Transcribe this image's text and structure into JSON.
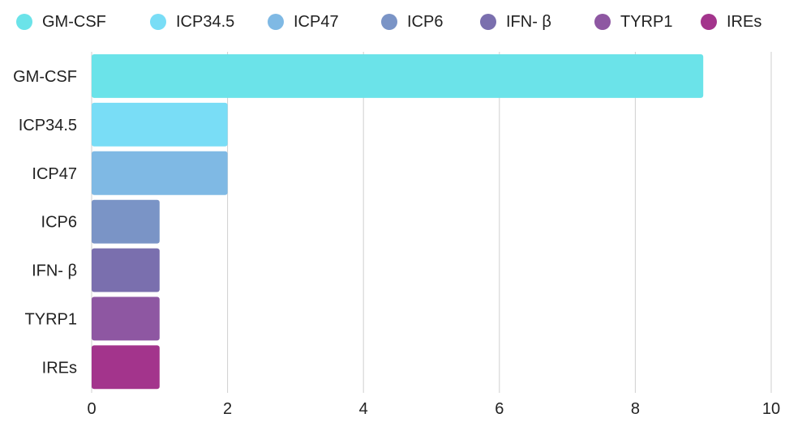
{
  "chart_data": {
    "type": "bar",
    "orientation": "horizontal",
    "categories": [
      "GM-CSF",
      "ICP34.5",
      "ICP47",
      "ICP6",
      "IFN- β",
      "TYRP1",
      "IREs"
    ],
    "values": [
      9,
      2,
      2,
      1,
      1,
      1,
      1
    ],
    "colors": [
      "#6be3e9",
      "#79ddf6",
      "#7fb9e4",
      "#7a94c6",
      "#7a6fae",
      "#8e57a2",
      "#a3348c"
    ],
    "xlim": [
      0,
      10
    ],
    "xticks": [
      0,
      2,
      4,
      6,
      8,
      10
    ],
    "xtick_labels": [
      "0",
      "2",
      "4",
      "6",
      "8",
      "10"
    ],
    "grid": "vertical",
    "legend": {
      "position": "top",
      "entries": [
        "GM-CSF",
        "ICP34.5",
        "ICP47",
        "ICP6",
        "IFN- β",
        "TYRP1",
        "IREs"
      ]
    }
  }
}
